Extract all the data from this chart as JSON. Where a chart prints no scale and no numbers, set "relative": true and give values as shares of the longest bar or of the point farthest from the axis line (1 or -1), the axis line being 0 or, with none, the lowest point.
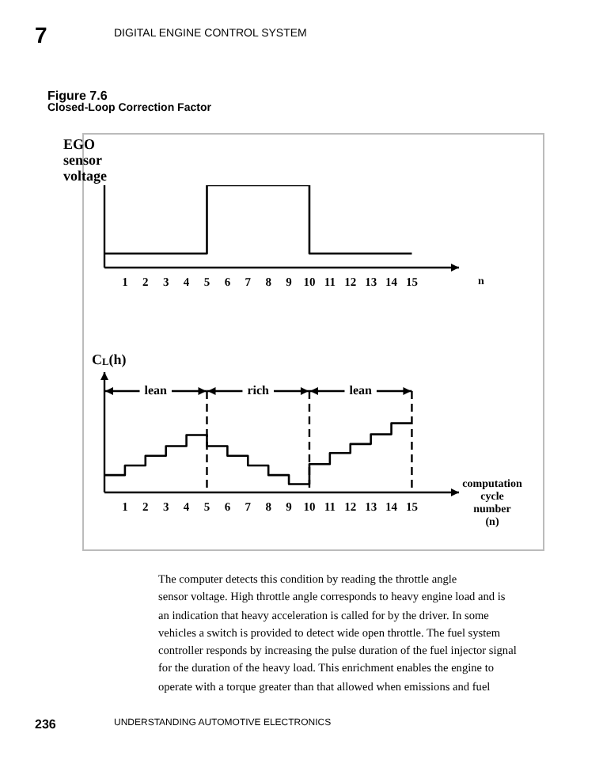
{
  "chart_data": [
    {
      "type": "step",
      "title": "Figure 7.6",
      "subtitle": "Closed-Loop Correction Factor",
      "xlabel": "n",
      "ylabel": "EGO\nsensor\nvoltage",
      "relative": true,
      "x": [
        0,
        5,
        10,
        15
      ],
      "series": [
        {
          "color": "#000000",
          "values": [
            0.17,
            1,
            0.17,
            0.17
          ]
        }
      ],
      "xlim": [
        0,
        17.3
      ],
      "xticks": [
        1,
        2,
        3,
        4,
        5,
        6,
        7,
        8,
        9,
        10,
        11,
        12,
        13,
        14,
        15
      ],
      "tick_labels": "x",
      "grid": false,
      "legend": false,
      "annotations": [
        "7",
        "DIGITAL ENGINE CONTROL SYSTEM"
      ]
    },
    {
      "type": "step",
      "xlabel": "computation\ncycle\nnumber\n(n)",
      "ylabel": "C$_{L}$(h)",
      "relative": true,
      "x": [
        0,
        1,
        2,
        3,
        4,
        5,
        6,
        7,
        8,
        9,
        10,
        11,
        12,
        13,
        14,
        15
      ],
      "series": [
        {
          "color": "#000000",
          "values": [
            0.25,
            0.39,
            0.53,
            0.67,
            0.83,
            0.67,
            0.53,
            0.39,
            0.25,
            0.12,
            0.41,
            0.57,
            0.7,
            0.84,
            1,
            1
          ]
        }
      ],
      "xlim": [
        0,
        17.3
      ],
      "xticks": [
        1,
        2,
        3,
        4,
        5,
        6,
        7,
        8,
        9,
        10,
        11,
        12,
        13,
        14,
        15
      ],
      "tick_labels": "x",
      "grid": false,
      "legend": false,
      "ref_lines": [
        {
          "axis": "x",
          "value": 5,
          "line_style": "dashed"
        },
        {
          "axis": "x",
          "value": 10,
          "line_style": "dashed"
        },
        {
          "axis": "x",
          "value": 15,
          "line_style": "dashed"
        }
      ],
      "annotations": [
        "lean",
        "rich",
        "lean",
        "The computer detects this condition by reading the throttle angle\nsensor voltage. High throttle angle corresponds to heavy engine load and is\nan indication that heavy acceleration is called for by the driver. In some\nvehicles a switch is provided to detect wide open throttle. The fuel system\ncontroller responds by increasing the pulse duration of the fuel injector signal\nfor the duration of the heavy load. This enrichment enables the engine to\noperate with a torque greater than that allowed when emissions and fuel",
        "236",
        "UNDERSTANDING AUTOMOTIVE ELECTRONICS"
      ]
    }
  ]
}
